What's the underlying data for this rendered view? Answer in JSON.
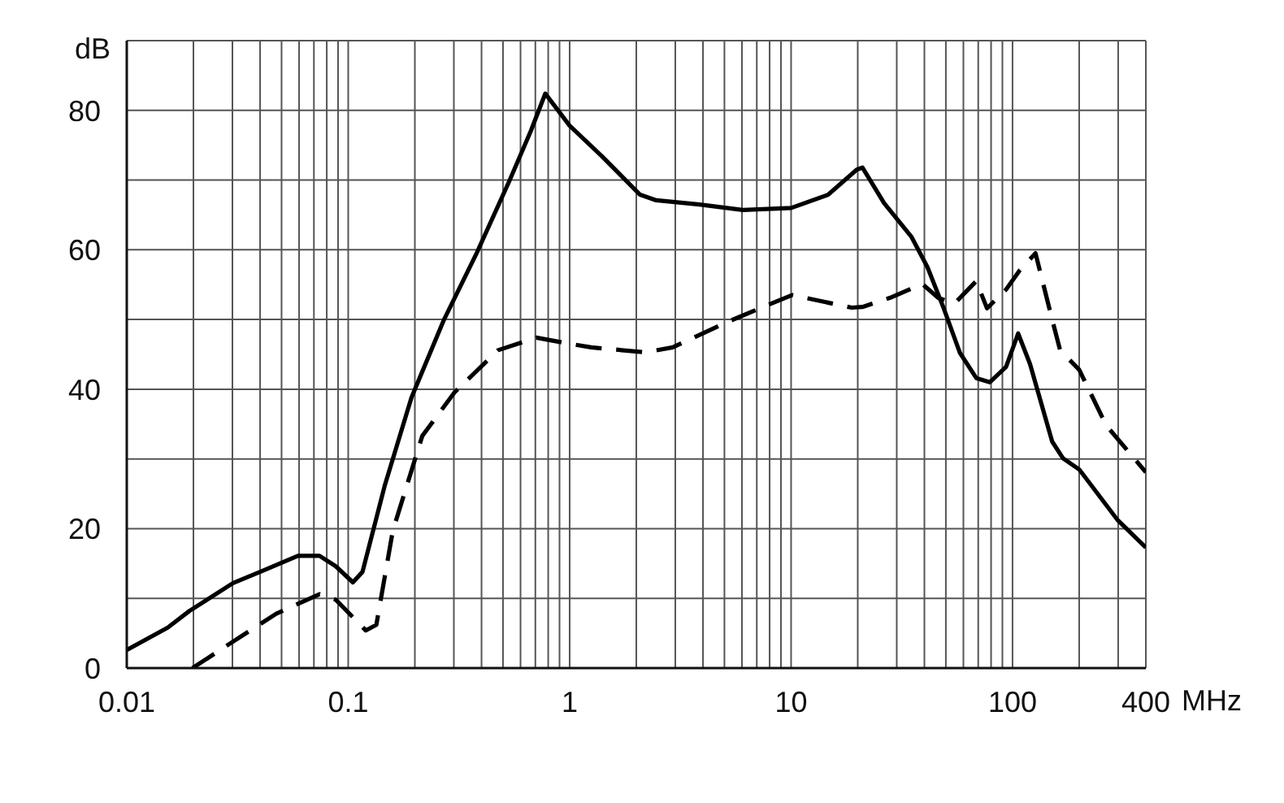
{
  "chart_data": {
    "type": "line",
    "xlabel": "MHz",
    "ylabel": "dB",
    "log": "x",
    "grid": true,
    "marker": "none",
    "xlim": [
      0.01,
      400
    ],
    "ylim": [
      0,
      90
    ],
    "xticks": [
      0.01,
      {
        "value": 0.02,
        "label": null
      },
      {
        "value": 0.03,
        "label": null
      },
      {
        "value": 0.04,
        "label": null
      },
      {
        "value": 0.05,
        "label": null
      },
      {
        "value": 0.06,
        "label": null
      },
      {
        "value": 0.07,
        "label": null
      },
      {
        "value": 0.08,
        "label": null
      },
      {
        "value": 0.09,
        "label": null
      },
      0.1,
      {
        "value": 0.2,
        "label": null
      },
      {
        "value": 0.3,
        "label": null
      },
      {
        "value": 0.4,
        "label": null
      },
      {
        "value": 0.5,
        "label": null
      },
      {
        "value": 0.6,
        "label": null
      },
      {
        "value": 0.7,
        "label": null
      },
      {
        "value": 0.8,
        "label": null
      },
      {
        "value": 0.9,
        "label": null
      },
      1,
      {
        "value": 2,
        "label": null
      },
      {
        "value": 3,
        "label": null
      },
      {
        "value": 4,
        "label": null
      },
      {
        "value": 5,
        "label": null
      },
      {
        "value": 6,
        "label": null
      },
      {
        "value": 7,
        "label": null
      },
      {
        "value": 8,
        "label": null
      },
      {
        "value": 9,
        "label": null
      },
      10,
      {
        "value": 20,
        "label": null
      },
      {
        "value": 30,
        "label": null
      },
      {
        "value": 40,
        "label": null
      },
      {
        "value": 50,
        "label": null
      },
      {
        "value": 60,
        "label": null
      },
      {
        "value": 70,
        "label": null
      },
      {
        "value": 80,
        "label": null
      },
      {
        "value": 90,
        "label": null
      },
      100,
      {
        "value": 200,
        "label": null
      },
      {
        "value": 300,
        "label": null
      },
      400
    ],
    "yticks": [
      0,
      {
        "value": 10,
        "label": null
      },
      20,
      {
        "value": 30,
        "label": null
      },
      40,
      {
        "value": 50,
        "label": null
      },
      60,
      {
        "value": 70,
        "label": null
      },
      80,
      {
        "value": 90,
        "label": null
      }
    ],
    "series": [
      {
        "color": "#000000",
        "line_style": "solid",
        "x": [
          0.01,
          0.0153,
          0.0192,
          0.0302,
          0.04,
          0.0593,
          0.0742,
          0.0879,
          0.105,
          0.116,
          0.146,
          0.193,
          0.271,
          0.38,
          0.533,
          0.667,
          0.776,
          1.0,
          1.4,
          2.08,
          2.46,
          3.86,
          6.06,
          10,
          14.7,
          19.8,
          21.0,
          26.3,
          34.9,
          41.3,
          48.9,
          57.9,
          68.6,
          78.9,
          93.5,
          106,
          120,
          151,
          169,
          200,
          297,
          400
        ],
        "values": [
          2.6,
          5.8,
          8.2,
          12.2,
          13.8,
          16.1,
          16.1,
          14.6,
          12.3,
          13.8,
          26.1,
          38.8,
          50,
          59.5,
          69.8,
          77,
          82.4,
          77.8,
          73.4,
          67.9,
          67.1,
          66.5,
          65.7,
          66,
          67.9,
          71.5,
          71.8,
          66.7,
          61.9,
          57.5,
          51.6,
          45.2,
          41.6,
          41,
          43.2,
          48,
          43.6,
          32.5,
          30.1,
          28.5,
          21.3,
          17.3
        ]
      },
      {
        "color": "#000000",
        "line_style": "dashed",
        "x": [
          0.0198,
          0.0302,
          0.0473,
          0.0742,
          0.0879,
          0.12,
          0.134,
          0.159,
          0.216,
          0.303,
          0.475,
          0.706,
          1.05,
          1.25,
          2.2,
          2.92,
          5.12,
          7.59,
          10.1,
          18.8,
          21.0,
          27.9,
          39.1,
          46.2,
          54.7,
          68.6,
          76.7,
          93.5,
          108,
          127,
          151,
          164,
          200,
          265,
          400
        ],
        "values": [
          0,
          3.8,
          7.8,
          10.6,
          9.8,
          5.4,
          6.2,
          19.7,
          33.3,
          39.6,
          45.6,
          47.4,
          46.4,
          46,
          45.3,
          46,
          49.6,
          51.9,
          53.5,
          51.7,
          51.8,
          53.1,
          55.1,
          53.1,
          52.3,
          55.5,
          51.6,
          54.3,
          57.1,
          59.5,
          50,
          45.6,
          42.8,
          34.8,
          28.1
        ]
      }
    ]
  }
}
